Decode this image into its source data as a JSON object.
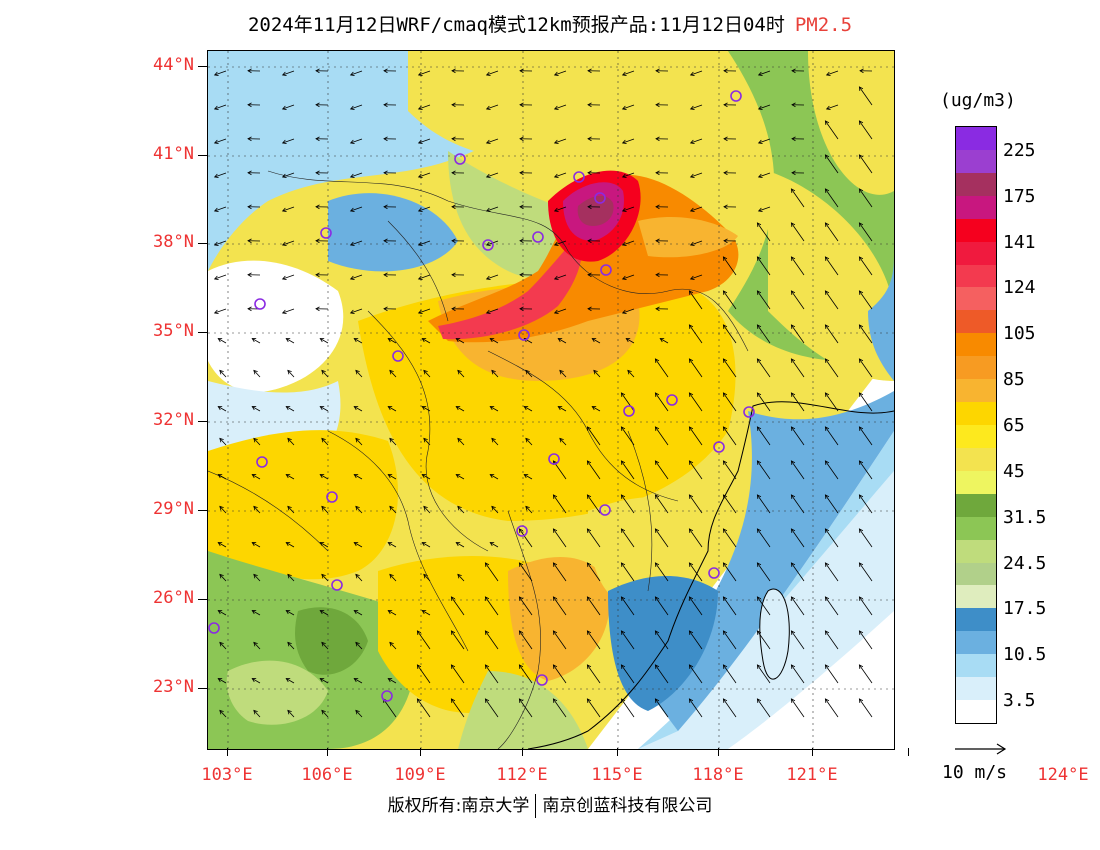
{
  "title": {
    "main": "2024年11月12日WRF/cmaq模式12km预报产品:11月12日04时",
    "species": "PM2.5",
    "species_color": "#e8413a"
  },
  "map": {
    "lat_labels": [
      "44°N",
      "41°N",
      "38°N",
      "35°N",
      "32°N",
      "29°N",
      "26°N",
      "23°N"
    ],
    "lon_labels": [
      "103°E",
      "106°E",
      "109°E",
      "112°E",
      "115°E",
      "118°E",
      "121°E",
      "124°E"
    ],
    "city_marker_color": "#8a2be2"
  },
  "legend": {
    "unit": "(ug/m3)",
    "levels": [
      {
        "label": "225",
        "color": "#8a2be2"
      },
      {
        "label": "",
        "color": "#9b3fd0"
      },
      {
        "label": "175",
        "color": "#a5305f"
      },
      {
        "label": "",
        "color": "#c8177f"
      },
      {
        "label": "141",
        "color": "#f5001e"
      },
      {
        "label": "",
        "color": "#f01a3e"
      },
      {
        "label": "124",
        "color": "#f33a4f"
      },
      {
        "label": "",
        "color": "#f56060"
      },
      {
        "label": "105",
        "color": "#ee5a28"
      },
      {
        "label": "",
        "color": "#f88a00"
      },
      {
        "label": "85",
        "color": "#f79b22"
      },
      {
        "label": "",
        "color": "#f8b430"
      },
      {
        "label": "65",
        "color": "#fdd600"
      },
      {
        "label": "",
        "color": "#fde91e"
      },
      {
        "label": "45",
        "color": "#f3e34f"
      },
      {
        "label": "",
        "color": "#eef560"
      },
      {
        "label": "31.5",
        "color": "#6fa83c"
      },
      {
        "label": "",
        "color": "#8cc655"
      },
      {
        "label": "24.5",
        "color": "#bfdc7c"
      },
      {
        "label": "",
        "color": "#b1d08a"
      },
      {
        "label": "17.5",
        "color": "#dfedbe"
      },
      {
        "label": "",
        "color": "#3e8ec8"
      },
      {
        "label": "10.5",
        "color": "#6bb0e0"
      },
      {
        "label": "",
        "color": "#a8dcf4"
      },
      {
        "label": "3.5",
        "color": "#d9effa"
      },
      {
        "label": "",
        "color": "#ffffff"
      }
    ],
    "wind_reference": "10 m/s"
  },
  "footer": {
    "left": "版权所有:南京大学",
    "right": "南京创蓝科技有限公司"
  }
}
